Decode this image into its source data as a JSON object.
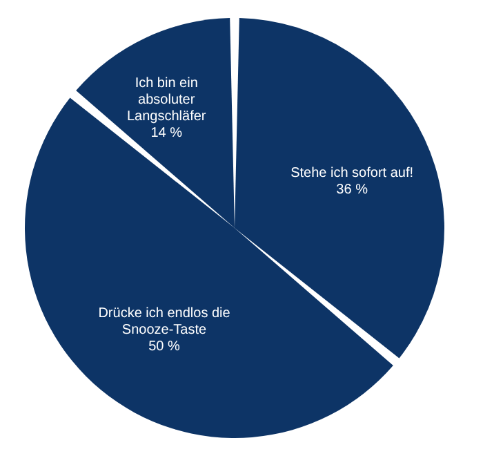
{
  "chart_data": {
    "type": "pie",
    "categories": [
      "Stehe ich sofort auf!",
      "Drücke ich endlos die Snooze-Taste",
      "Ich bin ein absoluter Langschläfer"
    ],
    "values": [
      36,
      50,
      14
    ],
    "value_labels": [
      "36 %",
      "50 %",
      "14 %"
    ],
    "colors": [
      "#0d3466",
      "#0d3466",
      "#0d3466"
    ],
    "legend": false
  }
}
